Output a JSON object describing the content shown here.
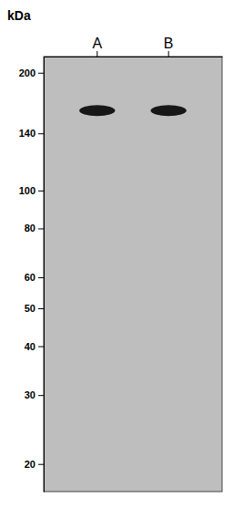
{
  "chart_data": {
    "type": "gel",
    "ylabel": "kDa",
    "categories": [
      "A",
      "B"
    ],
    "values": [
      160,
      160
    ],
    "color": "#0a0a0a",
    "log": "y",
    "ylim": [
      17,
      220
    ],
    "yticks": [
      200,
      140,
      100,
      80,
      60,
      50,
      40,
      30,
      20
    ],
    "grid": false
  }
}
